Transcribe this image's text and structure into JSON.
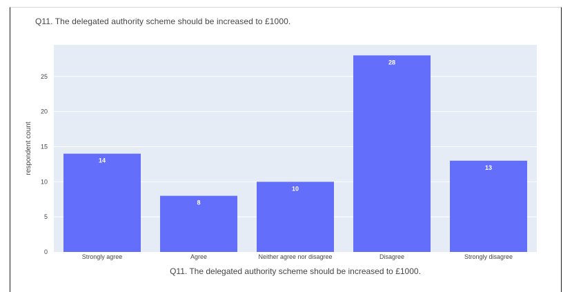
{
  "chart_data": {
    "type": "bar",
    "title": "Q11. The delegated authority scheme should be increased to £1000.",
    "categories": [
      "Strongly agree",
      "Agree",
      "Neither agree nor disagree",
      "Disagree",
      "Strongly disagree"
    ],
    "values": [
      14,
      8,
      10,
      28,
      13
    ],
    "xlabel": "Q11. The delegated authority scheme should be increased to £1000.",
    "ylabel": "respondent count",
    "ylim": [
      0,
      29.5
    ],
    "yticks": [
      0,
      5,
      10,
      15,
      20,
      25
    ],
    "grid": true,
    "colors": {
      "bar": "#636efa",
      "plot_bg": "#e5ecf6",
      "grid": "#ffffff"
    }
  }
}
